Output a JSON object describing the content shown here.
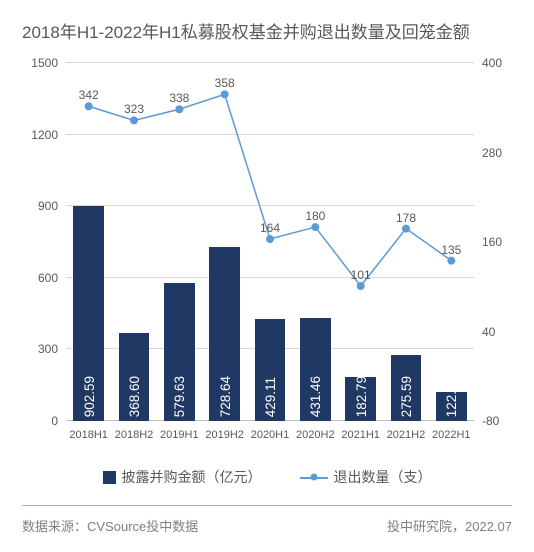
{
  "title": "2018年H1-2022年H1私募股权基金并购退出数量及回笼金额",
  "chart": {
    "type": "bar+line",
    "categories": [
      "2018H1",
      "2018H2",
      "2019H1",
      "2019H2",
      "2020H1",
      "2020H2",
      "2021H1",
      "2021H2",
      "2022H1"
    ],
    "bar_series": {
      "name": "披露并购金额（亿元）",
      "values": [
        902.59,
        368.6,
        579.63,
        728.64,
        429.11,
        431.46,
        182.79,
        275.59,
        122.33
      ],
      "value_labels": [
        "902.59",
        "368.60",
        "579.63",
        "728.64",
        "429.11",
        "431.46",
        "182.79",
        "275.59",
        "122.33"
      ],
      "color": "#203864",
      "bar_width_pct": 68
    },
    "line_series": {
      "name": "退出数量（支）",
      "values": [
        342,
        323,
        338,
        358,
        164,
        180,
        101,
        178,
        135
      ],
      "color": "#5b9bd5",
      "line_width": 1.5,
      "marker": "circle",
      "marker_size": 4
    },
    "y_left": {
      "min": 0,
      "max": 1500,
      "ticks": [
        0,
        300,
        600,
        900,
        1200,
        1500
      ],
      "fontsize": 12,
      "color": "#595959"
    },
    "y_right": {
      "min": -80,
      "max": 400,
      "ticks": [
        -80,
        40,
        160,
        280,
        400
      ],
      "fontsize": 12,
      "color": "#595959"
    },
    "grid_color": "#d9d9d9",
    "baseline_color": "#bfbfbf",
    "background_color": "#ffffff",
    "title_fontsize": 17,
    "title_color": "#595959",
    "x_fontsize": 11,
    "x_color": "#595959",
    "point_label_fontsize": 12
  },
  "legend": {
    "bar_label": "披露并购金额（亿元）",
    "line_label": "退出数量（支）"
  },
  "footer": {
    "left": "数据来源：CVSource投中数据",
    "right": "投中研究院，2022.07"
  }
}
